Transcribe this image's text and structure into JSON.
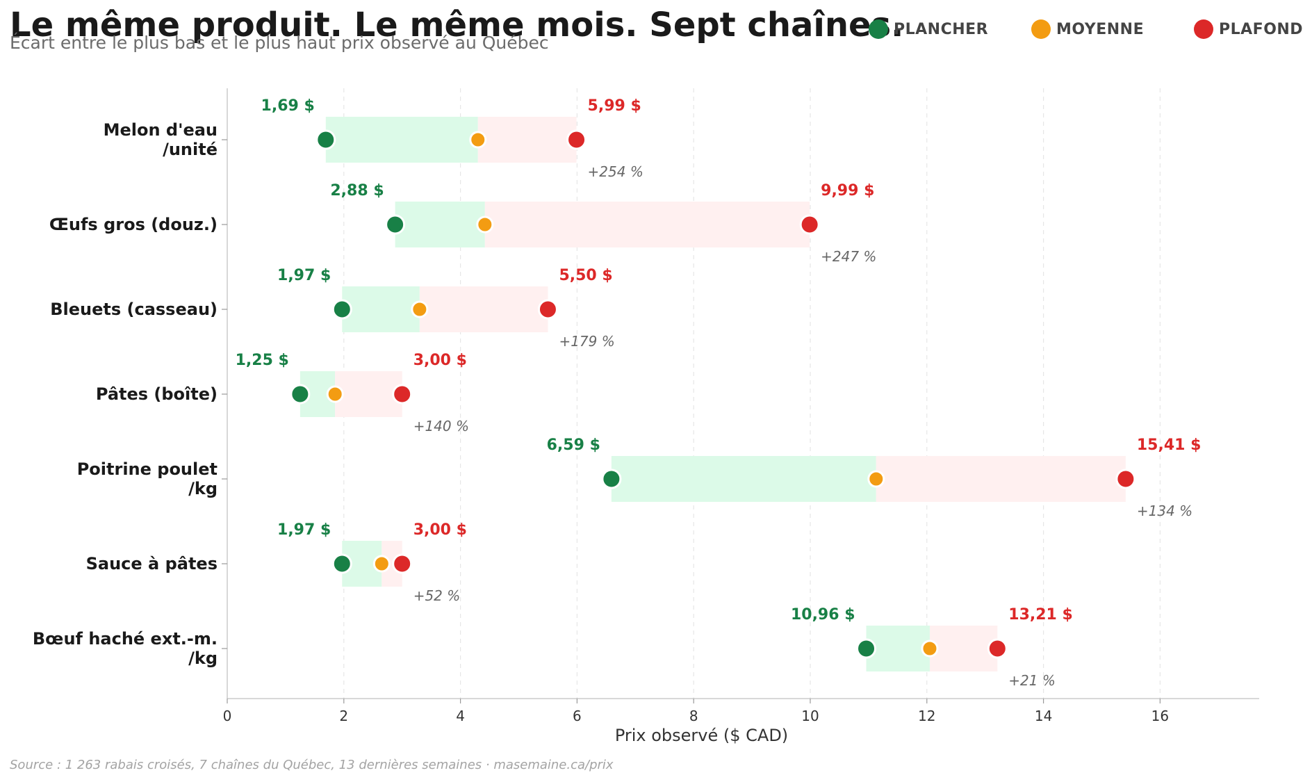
{
  "title": "Le même produit. Le même mois. Sept chaînes.",
  "subtitle": "Écart entre le plus bas et le plus haut prix observé au Québec",
  "source": "Source : 1 263 rabais croisés, 7 chaînes du Québec, 13 dernières semaines · masemaine.ca/prix",
  "legend": {
    "floor": "PLANCHER",
    "mean": "MOYENNE",
    "ceiling": "PLAFOND"
  },
  "colors": {
    "floor": "#188046",
    "mean": "#f39c12",
    "ceiling": "#dc2828",
    "floor_band": "#dcfae8",
    "ceiling_band": "#fff0f0",
    "gap_text": "#666666"
  },
  "chart_data": {
    "type": "dumbbell",
    "xlabel": "Prix observé ($ CAD)",
    "xlim": [
      0,
      17.7
    ],
    "xticks": [
      0,
      2,
      4,
      6,
      8,
      10,
      12,
      14,
      16
    ],
    "grid": "vertical dashed",
    "legend_position": "top-right",
    "categories": [
      {
        "name": [
          "Melon d'eau",
          "/unité"
        ],
        "floor": 1.69,
        "mean": 4.3,
        "ceiling": 5.99,
        "floor_label": "1,69 $",
        "ceiling_label": "5,99 $",
        "gap_label": "+254 %"
      },
      {
        "name": [
          "Œufs gros (douz.)"
        ],
        "floor": 2.88,
        "mean": 4.42,
        "ceiling": 9.99,
        "floor_label": "2,88 $",
        "ceiling_label": "9,99 $",
        "gap_label": "+247 %"
      },
      {
        "name": [
          "Bleuets (casseau)"
        ],
        "floor": 1.97,
        "mean": 3.3,
        "ceiling": 5.5,
        "floor_label": "1,97 $",
        "ceiling_label": "5,50 $",
        "gap_label": "+179 %"
      },
      {
        "name": [
          "Pâtes (boîte)"
        ],
        "floor": 1.25,
        "mean": 1.85,
        "ceiling": 3.0,
        "floor_label": "1,25 $",
        "ceiling_label": "3,00 $",
        "gap_label": "+140 %"
      },
      {
        "name": [
          "Poitrine poulet",
          "/kg"
        ],
        "floor": 6.59,
        "mean": 11.13,
        "ceiling": 15.41,
        "floor_label": "6,59 $",
        "ceiling_label": "15,41 $",
        "gap_label": "+134 %"
      },
      {
        "name": [
          "Sauce à pâtes"
        ],
        "floor": 1.97,
        "mean": 2.65,
        "ceiling": 3.0,
        "floor_label": "1,97 $",
        "ceiling_label": "3,00 $",
        "gap_label": "+52 %"
      },
      {
        "name": [
          "Bœuf haché ext.-m.",
          "/kg"
        ],
        "floor": 10.96,
        "mean": 12.05,
        "ceiling": 13.21,
        "floor_label": "10,96 $",
        "ceiling_label": "13,21 $",
        "gap_label": "+21 %"
      }
    ]
  }
}
